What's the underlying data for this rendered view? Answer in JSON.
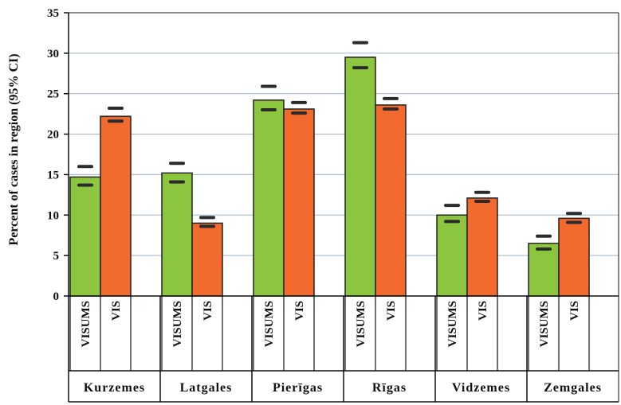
{
  "chart_data": {
    "type": "bar",
    "ylabel": "Percent of cases in region (95% CI)",
    "ylim": [
      0,
      35
    ],
    "yticks": [
      "0",
      "5",
      "10",
      "15",
      "20",
      "25",
      "30",
      "35"
    ],
    "grid": true,
    "groups": [
      "Kurzemes",
      "Latgales",
      "Pierīgas",
      "Rīgas",
      "Vidzemes",
      "Zemgales"
    ],
    "subcategories": [
      "VISUMS",
      "VIS"
    ],
    "colors": {
      "VISUMS": "#8cc63f",
      "VIS": "#f26a2e"
    },
    "series": [
      {
        "name": "VISUMS",
        "values": [
          14.7,
          15.2,
          24.2,
          29.5,
          10.0,
          6.5
        ],
        "ci_low": [
          13.7,
          14.1,
          23.0,
          28.2,
          9.2,
          5.8
        ],
        "ci_high": [
          16.0,
          16.4,
          25.9,
          31.3,
          11.2,
          7.4
        ]
      },
      {
        "name": "VIS",
        "values": [
          22.2,
          9.0,
          23.1,
          23.6,
          12.1,
          9.6
        ],
        "ci_low": [
          21.6,
          8.6,
          22.6,
          23.1,
          11.7,
          9.1
        ],
        "ci_high": [
          23.2,
          9.7,
          23.9,
          24.4,
          12.8,
          10.2
        ]
      }
    ]
  }
}
